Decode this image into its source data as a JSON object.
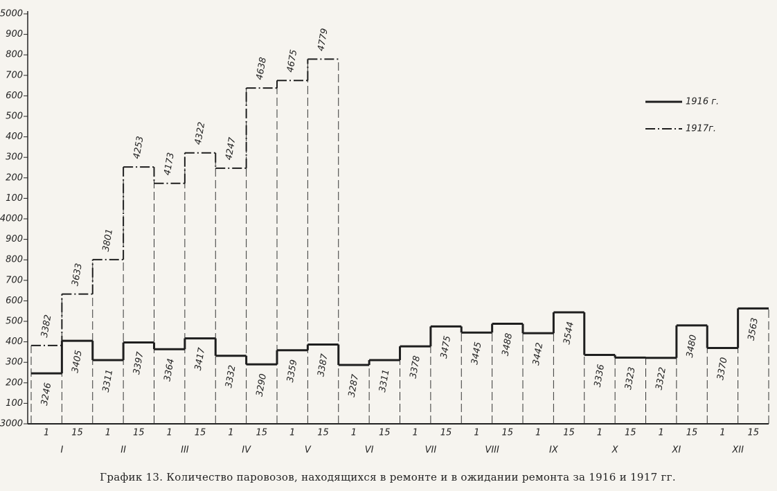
{
  "chart_data": {
    "type": "step",
    "caption": "График 13. Количество паровозов, находящихся в ремонте и в ожидании ремонта за 1916 и 1917 гг.",
    "categories": [
      "1",
      "15",
      "1",
      "15",
      "1",
      "15",
      "1",
      "15",
      "1",
      "15",
      "1",
      "15",
      "1",
      "15",
      "1",
      "15",
      "1",
      "15",
      "1",
      "15",
      "1",
      "15",
      "1",
      "15"
    ],
    "months": [
      "I",
      "II",
      "III",
      "IV",
      "V",
      "VI",
      "VII",
      "VIII",
      "IX",
      "X",
      "XI",
      "XII"
    ],
    "series": [
      {
        "name": "1916 г.",
        "color": "#1e1e1e",
        "style": "solid",
        "values": [
          3246,
          3405,
          3311,
          3397,
          3364,
          3417,
          3332,
          3290,
          3359,
          3387,
          3287,
          3311,
          3378,
          3475,
          3445,
          3488,
          3442,
          3544,
          3336,
          3323,
          3322,
          3480,
          3370,
          3563
        ]
      },
      {
        "name": "1917г.",
        "color": "#1e1e1e",
        "style": "dashdot",
        "values": [
          3382,
          3633,
          3801,
          4253,
          4173,
          4322,
          4247,
          4638,
          4675,
          4779,
          null,
          null,
          null,
          null,
          null,
          null,
          null,
          null,
          null,
          null,
          null,
          null,
          null,
          null
        ]
      }
    ],
    "ylim": [
      3000,
      5000
    ],
    "yticks": [
      3000,
      {
        "value": 3100,
        "label": "100"
      },
      {
        "value": 3200,
        "label": "200"
      },
      {
        "value": 3300,
        "label": "300"
      },
      {
        "value": 3400,
        "label": "400"
      },
      {
        "value": 3500,
        "label": "500"
      },
      {
        "value": 3600,
        "label": "600"
      },
      {
        "value": 3700,
        "label": "700"
      },
      {
        "value": 3800,
        "label": "800"
      },
      {
        "value": 3900,
        "label": "900"
      },
      4000,
      {
        "value": 4100,
        "label": "100"
      },
      {
        "value": 4200,
        "label": "200"
      },
      {
        "value": 4300,
        "label": "300"
      },
      {
        "value": 4400,
        "label": "400"
      },
      {
        "value": 4500,
        "label": "500"
      },
      {
        "value": 4600,
        "label": "600"
      },
      {
        "value": 4700,
        "label": "700"
      },
      {
        "value": 4800,
        "label": "800"
      },
      {
        "value": 4900,
        "label": "900"
      },
      5000
    ],
    "legend": "upper right"
  }
}
